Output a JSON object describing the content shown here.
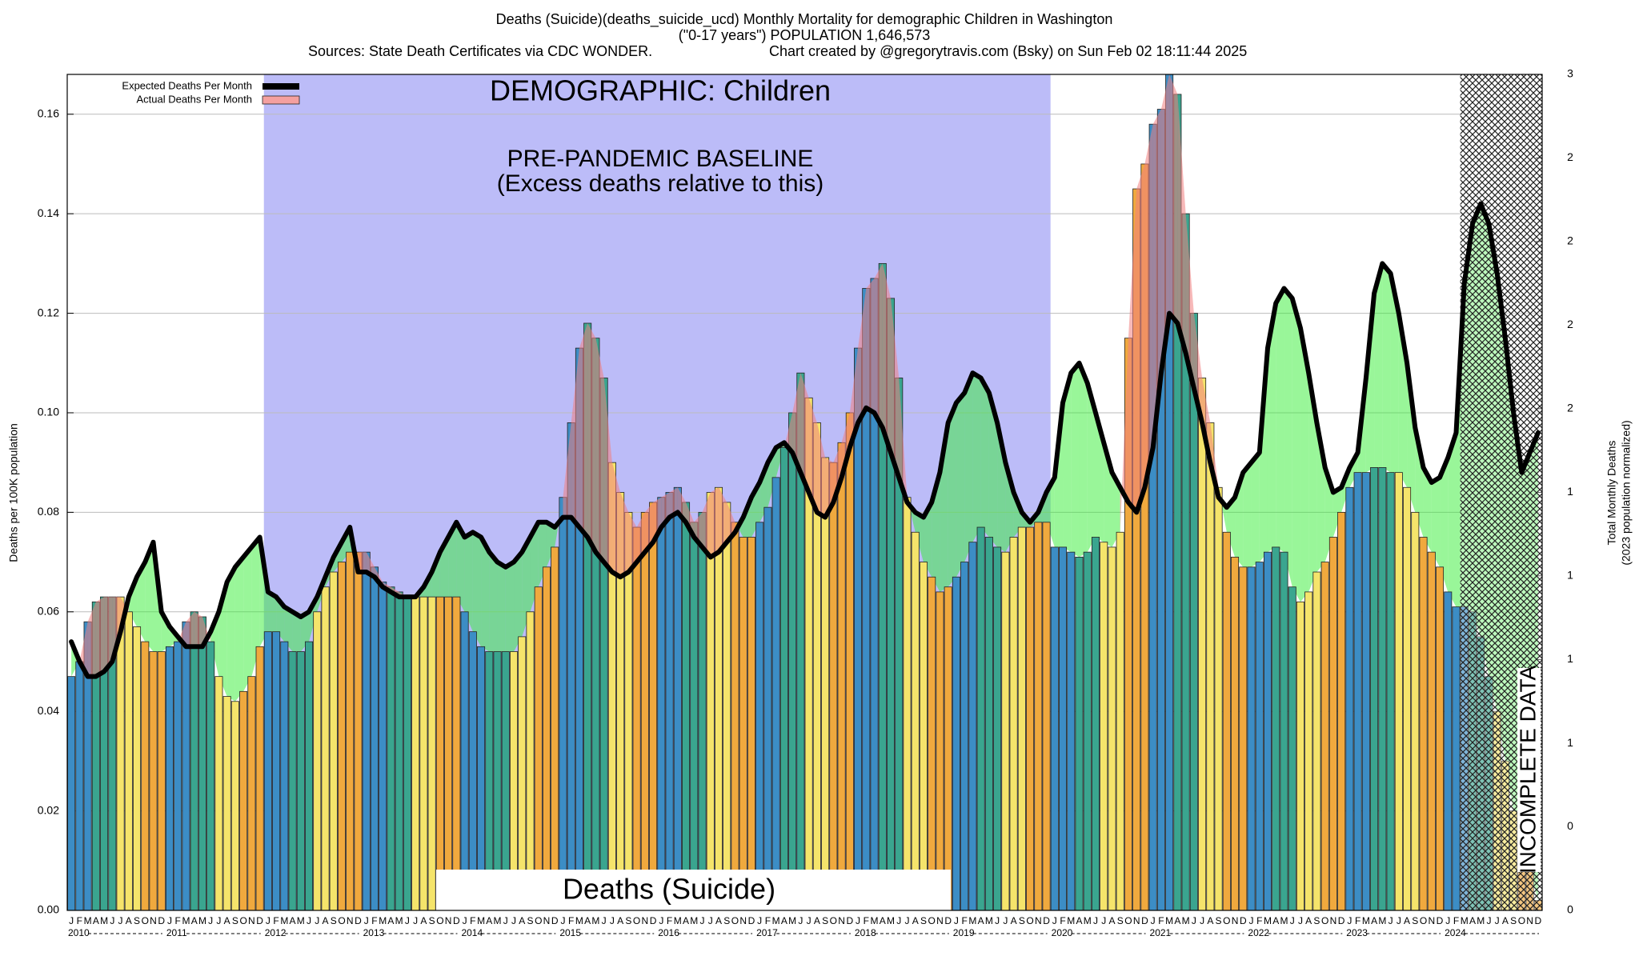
{
  "chart_data": {
    "type": "bar",
    "title": "Deaths (Suicide)(deaths_suicide_ucd) Monthly Mortality for demographic Children in Washington",
    "subtitle": "(\"0-17 years\") POPULATION 1,646,573",
    "sources": "Sources: State Death Certificates via CDC WONDER.",
    "credit": "Chart created by @gregorytravis.com (Bsky) on Sun Feb 02 18:11:44 2025",
    "ylabel": "Deaths per 100K population",
    "y2label": [
      "Total Monthly Deaths",
      "(2023 population normalized)"
    ],
    "annotations": {
      "demographic": "DEMOGRAPHIC: Children",
      "baseline": "PRE-PANDEMIC BASELINE",
      "baseline_note": "(Excess deaths relative to this)",
      "cause": "Deaths (Suicide)",
      "incomplete": "INCOMPLETE DATA"
    },
    "month_labels": [
      "J",
      "F",
      "M",
      "A",
      "M",
      "J",
      "J",
      "A",
      "S",
      "O",
      "N",
      "D"
    ],
    "years": [
      "2010",
      "2011",
      "2012",
      "2013",
      "2014",
      "2015",
      "2016",
      "2017",
      "2018",
      "2019",
      "2020",
      "2021",
      "2022",
      "2023",
      "2024"
    ],
    "month_colors": [
      "#3c8dc5",
      "#3c8dc5",
      "#3c8dc5",
      "#3aa58f",
      "#3aa58f",
      "#3aa58f",
      "#f5e46b",
      "#f5e46b",
      "#f5e46b",
      "#f0a93e",
      "#f0a93e",
      "#f0a93e"
    ],
    "baseline_color": "#bcbcf8",
    "deficit_color": "#33ee33",
    "excess_color": "#f08080",
    "ylim": [
      0,
      0.168
    ],
    "yticks": [
      {
        "value": 0,
        "label": "0.00"
      },
      0.02,
      0.04,
      0.06,
      0.08,
      {
        "value": 0.1,
        "label": "0.10"
      },
      0.12,
      0.14,
      0.16
    ],
    "y2lim": [
      0,
      2.766
    ],
    "y2ticks": [
      0,
      {
        "value": 0.277,
        "label": "0"
      },
      {
        "value": 0.553,
        "label": "1"
      },
      {
        "value": 0.83,
        "label": "1"
      },
      {
        "value": 1.107,
        "label": "1"
      },
      {
        "value": 1.383,
        "label": "1"
      },
      {
        "value": 1.66,
        "label": "2"
      },
      {
        "value": 1.937,
        "label": "2"
      },
      {
        "value": 2.213,
        "label": "2"
      },
      {
        "value": 2.49,
        "label": "2"
      },
      {
        "value": 2.766,
        "label": "3"
      }
    ],
    "series": [
      {
        "name": "Expected Deaths Per Month",
        "color": "#000000",
        "values": [
          0.054,
          0.05,
          0.047,
          0.047,
          0.048,
          0.05,
          0.056,
          0.063,
          0.067,
          0.07,
          0.074,
          0.06,
          0.057,
          0.055,
          0.053,
          0.053,
          0.053,
          0.056,
          0.06,
          0.066,
          0.069,
          0.071,
          0.073,
          0.075,
          0.064,
          0.063,
          0.061,
          0.06,
          0.059,
          0.06,
          0.063,
          0.067,
          0.071,
          0.074,
          0.077,
          0.068,
          0.068,
          0.067,
          0.065,
          0.064,
          0.063,
          0.063,
          0.063,
          0.065,
          0.068,
          0.072,
          0.075,
          0.078,
          0.075,
          0.076,
          0.075,
          0.072,
          0.07,
          0.069,
          0.07,
          0.072,
          0.075,
          0.078,
          0.078,
          0.077,
          0.079,
          0.079,
          0.077,
          0.075,
          0.072,
          0.07,
          0.068,
          0.067,
          0.068,
          0.07,
          0.072,
          0.074,
          0.077,
          0.079,
          0.08,
          0.078,
          0.075,
          0.073,
          0.071,
          0.072,
          0.074,
          0.076,
          0.079,
          0.083,
          0.086,
          0.09,
          0.093,
          0.094,
          0.092,
          0.088,
          0.084,
          0.08,
          0.079,
          0.082,
          0.087,
          0.093,
          0.098,
          0.101,
          0.1,
          0.097,
          0.092,
          0.087,
          0.082,
          0.08,
          0.079,
          0.082,
          0.088,
          0.098,
          0.102,
          0.104,
          0.108,
          0.107,
          0.104,
          0.098,
          0.09,
          0.084,
          0.08,
          0.078,
          0.08,
          0.084,
          0.087,
          0.102,
          0.108,
          0.11,
          0.106,
          0.1,
          0.094,
          0.088,
          0.085,
          0.082,
          0.08,
          0.085,
          0.093,
          0.108,
          0.12,
          0.118,
          0.112,
          0.105,
          0.098,
          0.09,
          0.083,
          0.081,
          0.083,
          0.088,
          0.09,
          0.092,
          0.113,
          0.122,
          0.125,
          0.123,
          0.117,
          0.108,
          0.098,
          0.089,
          0.084,
          0.085,
          0.089,
          0.092,
          0.107,
          0.124,
          0.13,
          0.128,
          0.12,
          0.11,
          0.097,
          0.089,
          0.086,
          0.087,
          0.091,
          0.096,
          0.126,
          0.138,
          0.142,
          0.138,
          0.128,
          0.115,
          0.1,
          0.088,
          0.092,
          0.096
        ]
      },
      {
        "name": "Actual Deaths Per Month",
        "color": "#f4a0a0",
        "values": [
          0.047,
          0.05,
          0.058,
          0.062,
          0.063,
          0.063,
          0.063,
          0.06,
          0.057,
          0.054,
          0.052,
          0.052,
          0.053,
          0.054,
          0.058,
          0.06,
          0.059,
          0.054,
          0.047,
          0.043,
          0.042,
          0.044,
          0.047,
          0.053,
          0.056,
          0.056,
          0.054,
          0.052,
          0.052,
          0.054,
          0.06,
          0.065,
          0.068,
          0.07,
          0.072,
          0.072,
          0.072,
          0.069,
          0.066,
          0.065,
          0.064,
          0.063,
          0.063,
          0.063,
          0.063,
          0.063,
          0.063,
          0.063,
          0.06,
          0.056,
          0.053,
          0.052,
          0.052,
          0.052,
          0.052,
          0.055,
          0.06,
          0.065,
          0.069,
          0.073,
          0.083,
          0.098,
          0.113,
          0.118,
          0.115,
          0.107,
          0.09,
          0.084,
          0.08,
          0.077,
          0.08,
          0.082,
          0.083,
          0.084,
          0.085,
          0.082,
          0.078,
          0.08,
          0.084,
          0.085,
          0.082,
          0.078,
          0.075,
          0.075,
          0.078,
          0.081,
          0.087,
          0.093,
          0.1,
          0.108,
          0.103,
          0.098,
          0.091,
          0.09,
          0.094,
          0.1,
          0.113,
          0.125,
          0.127,
          0.13,
          0.123,
          0.107,
          0.083,
          0.076,
          0.07,
          0.067,
          0.064,
          0.065,
          0.067,
          0.07,
          0.074,
          0.077,
          0.075,
          0.073,
          0.072,
          0.075,
          0.077,
          0.077,
          0.078,
          0.078,
          0.073,
          0.073,
          0.072,
          0.071,
          0.072,
          0.075,
          0.074,
          0.073,
          0.076,
          0.115,
          0.145,
          0.15,
          0.158,
          0.161,
          0.168,
          0.164,
          0.14,
          0.12,
          0.107,
          0.098,
          0.085,
          0.076,
          0.071,
          0.069,
          0.069,
          0.07,
          0.072,
          0.073,
          0.072,
          0.065,
          0.062,
          0.064,
          0.068,
          0.07,
          0.075,
          0.08,
          0.085,
          0.088,
          0.088,
          0.089,
          0.089,
          0.088,
          0.088,
          0.085,
          0.08,
          0.075,
          0.072,
          0.069,
          0.064,
          0.061,
          0.061,
          0.06,
          0.055,
          0.047,
          0.04,
          0.03,
          0.02,
          0.015,
          0.008,
          0.002
        ]
      }
    ]
  }
}
